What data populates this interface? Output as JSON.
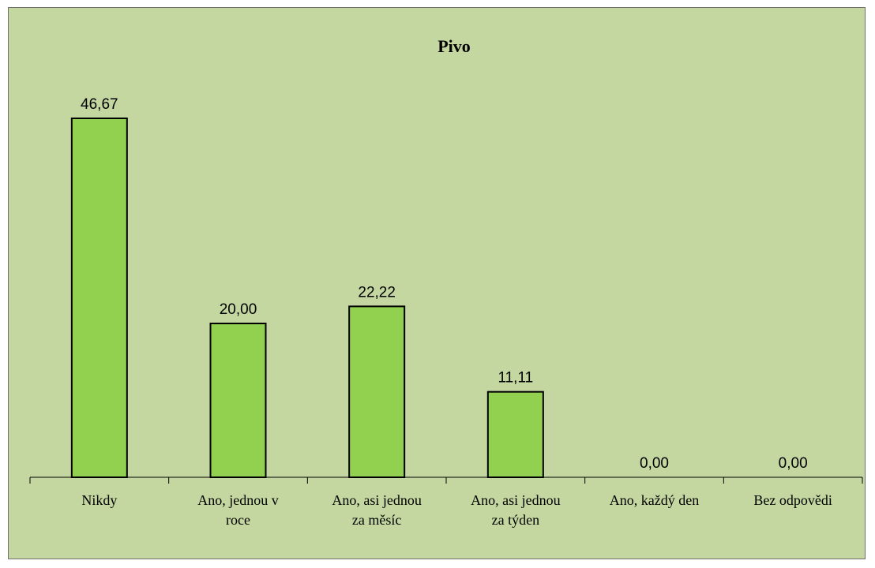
{
  "chart_data": {
    "type": "bar",
    "title": "Pivo",
    "categories": [
      [
        "Nikdy"
      ],
      [
        "Ano, jednou v",
        "roce"
      ],
      [
        "Ano, asi jednou",
        "za měsíc"
      ],
      [
        "Ano, asi jednou",
        "za týden"
      ],
      [
        "Ano, každý den"
      ],
      [
        "Bez odpovědi"
      ]
    ],
    "values": [
      46.67,
      20.0,
      22.22,
      11.11,
      0.0,
      0.0
    ],
    "data_labels": [
      "46,67",
      "20,00",
      "22,22",
      "11,11",
      "0,00",
      "0,00"
    ],
    "bar_color": "#92d050",
    "background_color": "#c4d7a0",
    "grid": false,
    "legend": "none"
  }
}
